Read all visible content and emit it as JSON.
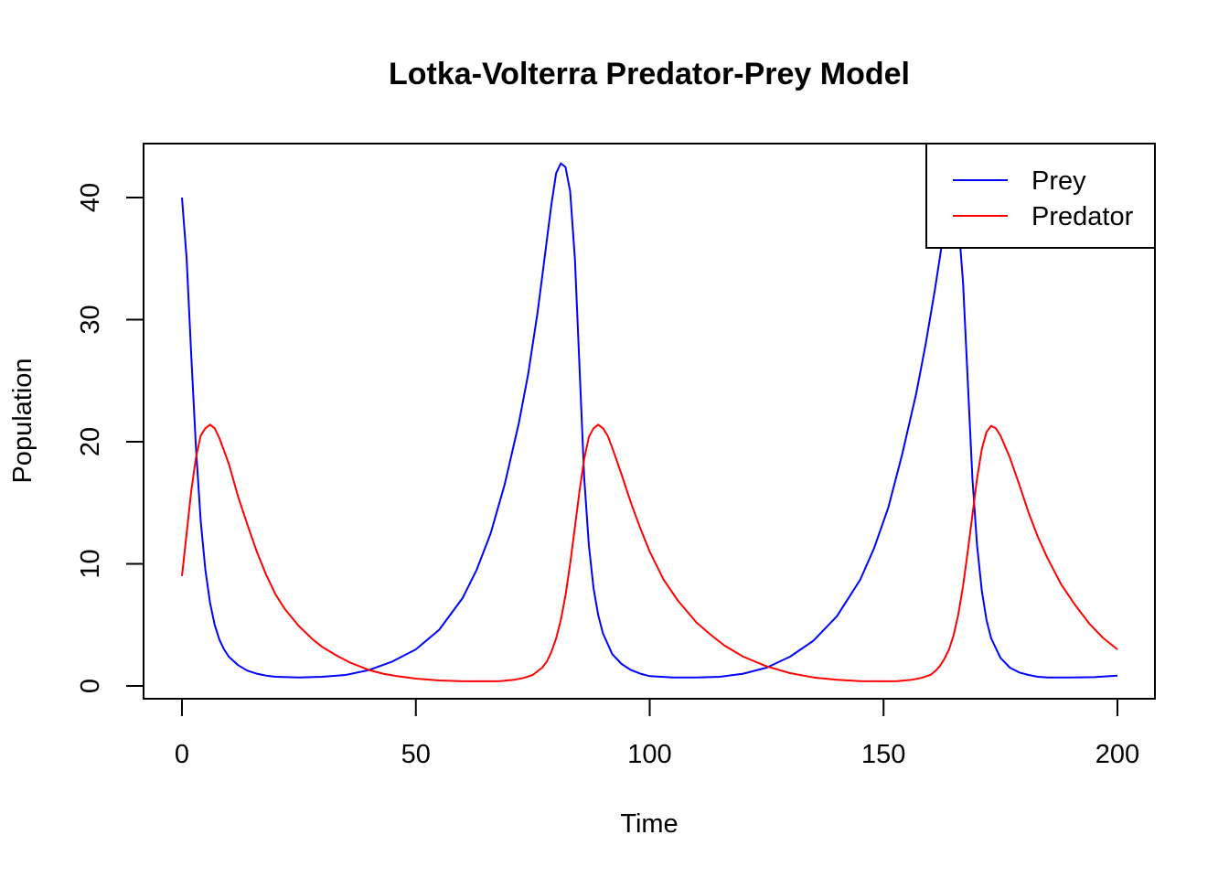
{
  "chart_data": {
    "type": "line",
    "title": "Lotka-Volterra Predator-Prey Model",
    "xlabel": "Time",
    "ylabel": "Population",
    "xlim": [
      0,
      200
    ],
    "ylim": [
      0,
      43
    ],
    "x_ticks": [
      0,
      50,
      100,
      150,
      200
    ],
    "x_tick_labels": [
      "0",
      "50",
      "100",
      "150",
      "200"
    ],
    "y_ticks": [
      0,
      10,
      20,
      30,
      40
    ],
    "y_tick_labels": [
      "0",
      "10",
      "20",
      "30",
      "40"
    ],
    "grid": false,
    "legend": {
      "placement": "top-right",
      "entries": [
        "Prey",
        "Predator"
      ]
    },
    "series": [
      {
        "name": "Prey",
        "color": "#0000ff",
        "x": [
          0,
          1,
          2,
          3,
          4,
          5,
          6,
          7,
          8,
          9,
          10,
          12,
          14,
          16,
          18,
          20,
          25,
          30,
          35,
          40,
          45,
          50,
          55,
          60,
          63,
          66,
          69,
          72,
          74,
          76,
          77,
          78,
          79,
          80,
          81,
          82,
          83,
          84,
          85,
          86,
          87,
          88,
          89,
          90,
          92,
          94,
          96,
          98,
          100,
          105,
          110,
          115,
          120,
          125,
          130,
          135,
          140,
          145,
          148,
          151,
          154,
          157,
          159,
          161,
          162,
          163,
          164,
          165,
          166,
          167,
          168,
          169,
          170,
          171,
          172,
          173,
          175,
          177,
          179,
          181,
          183,
          185,
          190,
          195,
          200
        ],
        "values": [
          40,
          35,
          27,
          19.5,
          13.5,
          9.5,
          6.8,
          5,
          3.8,
          3,
          2.4,
          1.7,
          1.25,
          1.0,
          0.85,
          0.75,
          0.7,
          0.75,
          0.9,
          1.3,
          2.0,
          3.0,
          4.6,
          7.2,
          9.5,
          12.5,
          16.5,
          21.5,
          25.5,
          30.5,
          33.5,
          36.5,
          39.5,
          42,
          42.8,
          42.5,
          40.5,
          35,
          26,
          17,
          11.5,
          8,
          5.8,
          4.3,
          2.6,
          1.8,
          1.3,
          1.0,
          0.8,
          0.7,
          0.7,
          0.75,
          1.0,
          1.5,
          2.4,
          3.7,
          5.7,
          8.7,
          11.3,
          14.6,
          19,
          24,
          28,
          32.5,
          35,
          37.5,
          39.5,
          40.5,
          38,
          33,
          25,
          17,
          11.5,
          7.8,
          5.4,
          3.9,
          2.3,
          1.5,
          1.1,
          0.9,
          0.75,
          0.7,
          0.7,
          0.72,
          0.85
        ]
      },
      {
        "name": "Predator",
        "color": "#ff0000",
        "x": [
          0,
          1,
          2,
          3,
          4,
          5,
          6,
          7,
          8,
          10,
          12,
          14,
          16,
          18,
          20,
          22,
          25,
          28,
          30,
          33,
          36,
          40,
          43,
          46,
          50,
          55,
          60,
          65,
          68,
          71,
          73,
          75,
          77,
          78,
          79,
          80,
          81,
          82,
          83,
          84,
          85,
          86,
          87,
          88,
          89,
          90,
          91,
          92,
          94,
          96,
          98,
          100,
          103,
          106,
          110,
          113,
          116,
          120,
          125,
          130,
          135,
          140,
          145,
          150,
          153,
          156,
          158,
          160,
          161,
          162,
          163,
          164,
          165,
          166,
          167,
          168,
          169,
          170,
          171,
          172,
          173,
          174,
          175,
          177,
          179,
          181,
          183,
          185,
          188,
          191,
          194,
          197,
          200
        ],
        "values": [
          9,
          12.5,
          16,
          18.7,
          20.5,
          21.1,
          21.4,
          21.1,
          20.3,
          18.2,
          15.5,
          13.2,
          11.0,
          9.1,
          7.5,
          6.3,
          4.9,
          3.8,
          3.2,
          2.5,
          1.9,
          1.3,
          1.0,
          0.8,
          0.6,
          0.45,
          0.38,
          0.38,
          0.4,
          0.5,
          0.65,
          0.9,
          1.5,
          2.0,
          2.8,
          3.9,
          5.4,
          7.4,
          10,
          13,
          16,
          18.6,
          20.4,
          21.1,
          21.4,
          21.1,
          20.5,
          19.5,
          17.3,
          15.0,
          12.9,
          11.0,
          8.7,
          7.0,
          5.2,
          4.2,
          3.3,
          2.4,
          1.6,
          1.05,
          0.7,
          0.5,
          0.4,
          0.38,
          0.4,
          0.5,
          0.65,
          0.9,
          1.2,
          1.6,
          2.2,
          3.0,
          4.2,
          5.9,
          8.2,
          11,
          14,
          17,
          19.4,
          20.8,
          21.3,
          21.1,
          20.5,
          18.7,
          16.5,
          14.2,
          12.2,
          10.5,
          8.3,
          6.6,
          5.1,
          3.9,
          3.0
        ]
      }
    ]
  }
}
